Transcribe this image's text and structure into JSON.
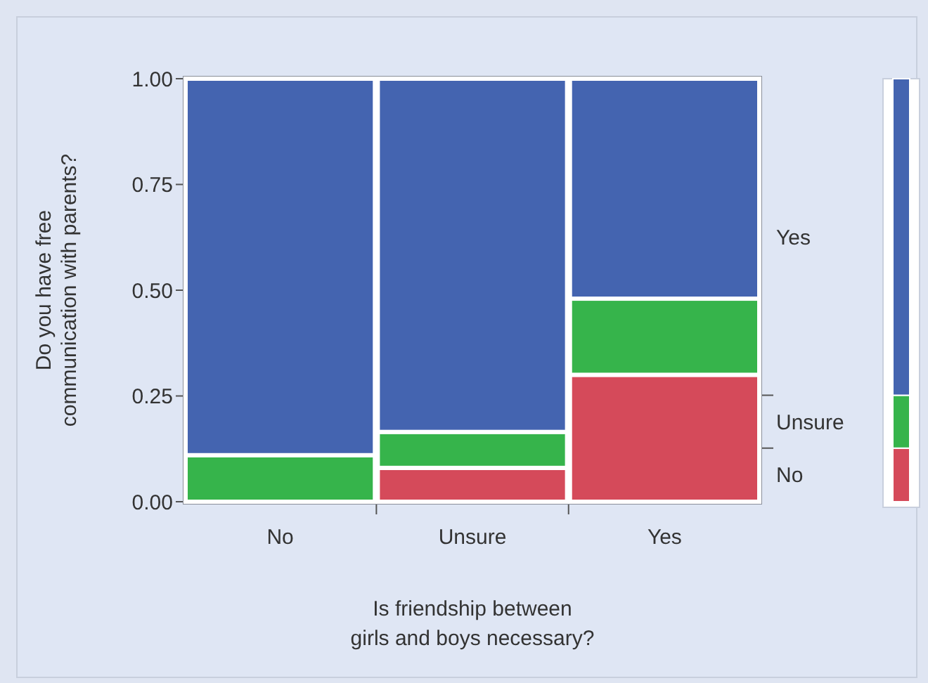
{
  "chart_data": {
    "type": "bar",
    "stacked": true,
    "xlabel": "Is friendship between\ngirls and boys necessary?",
    "ylabel": "Do you have free\ncommunication with parents?",
    "categories": [
      "No",
      "Unsure",
      "Yes"
    ],
    "series": [
      {
        "name": "No",
        "color": "#d54a5a",
        "values": [
          0,
          0.08,
          0.3
        ]
      },
      {
        "name": "Unsure",
        "color": "#36b44b",
        "values": [
          0.11,
          0.085,
          0.18
        ]
      },
      {
        "name": "Yes",
        "color": "#4464b0",
        "values": [
          0.89,
          0.835,
          0.52
        ]
      }
    ],
    "ylim": [
      0,
      1
    ],
    "yticks": [
      {
        "value": 0,
        "label": "0.00"
      },
      {
        "value": 0.25,
        "label": "0.25"
      },
      {
        "value": 0.5,
        "label": "0.50"
      },
      {
        "value": 0.75,
        "label": "0.75"
      },
      {
        "value": 1,
        "label": "1.00"
      }
    ],
    "legend": "right"
  }
}
